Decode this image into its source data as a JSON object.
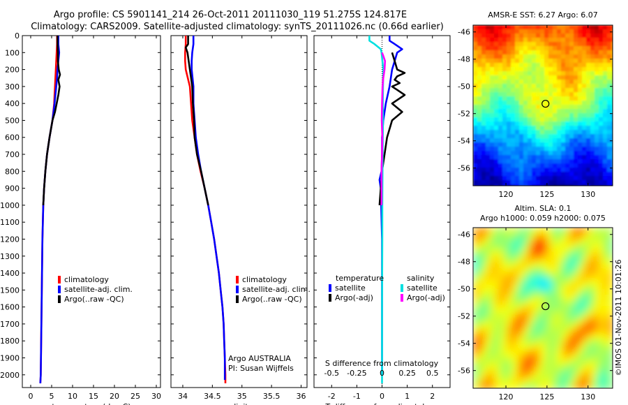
{
  "header": {
    "title_line1": "Argo profile: CS 5901141_214 26-Oct-2011 20111030_119 51.275S 124.817E",
    "title_line2": "Climatology: CARS2009. Satellite-adjusted climatology: synTS_20111026.nc (0.66d earlier)"
  },
  "watermark": "©IMOS 01-Nov-2011 10:01:26",
  "colors": {
    "climatology": "#ff0000",
    "satellite": "#0000ff",
    "argo": "#000000",
    "sat_salinity": "#00e0e0",
    "argo_salinity": "#ff00ff"
  },
  "chart_data": [
    {
      "type": "line",
      "id": "temperature",
      "xlabel": "temperature (deg C)",
      "xlim": [
        -2,
        31
      ],
      "ylim": [
        0,
        2075
      ],
      "xticks": [
        "0",
        "5",
        "10",
        "15",
        "20",
        "25",
        "30"
      ],
      "yticks": [
        "0",
        "100",
        "200",
        "300",
        "400",
        "500",
        "600",
        "700",
        "800",
        "900",
        "1000",
        "1100",
        "1200",
        "1300",
        "1400",
        "1500",
        "1600",
        "1700",
        "1800",
        "1900",
        "2000"
      ],
      "legend": {
        "placement": "lower-middle",
        "entries": [
          "climatology",
          "satellite-adj. clim.",
          "Argo(..raw -QC)"
        ]
      },
      "series": [
        {
          "name": "climatology",
          "color": "#ff0000",
          "depth": [
            0,
            50,
            100,
            150,
            200,
            250,
            300,
            350,
            400,
            500,
            600,
            700,
            800,
            900,
            1000,
            1200,
            1400,
            1600,
            1800,
            2000,
            2050
          ],
          "values": [
            6.3,
            6.3,
            6.2,
            6.1,
            6.0,
            5.9,
            5.8,
            5.7,
            5.6,
            5.2,
            4.5,
            3.9,
            3.5,
            3.2,
            3.0,
            2.8,
            2.7,
            2.6,
            2.5,
            2.4,
            2.3
          ]
        },
        {
          "name": "satellite-adj. clim.",
          "color": "#0000ff",
          "depth": [
            0,
            50,
            100,
            150,
            200,
            250,
            300,
            350,
            400,
            500,
            600,
            700,
            800,
            900,
            1000,
            1200,
            1400,
            1600,
            1800,
            2000,
            2050
          ],
          "values": [
            6.6,
            6.6,
            6.8,
            6.6,
            6.4,
            6.3,
            6.1,
            5.9,
            5.7,
            5.2,
            4.5,
            3.9,
            3.5,
            3.2,
            3.0,
            2.8,
            2.7,
            2.6,
            2.5,
            2.4,
            2.3
          ]
        },
        {
          "name": "Argo(..raw -QC)",
          "color": "#000000",
          "depth": [
            0,
            50,
            100,
            150,
            200,
            230,
            260,
            300,
            350,
            400,
            450,
            500,
            600,
            700,
            800,
            900,
            1000
          ],
          "values": [
            6.4,
            6.4,
            6.5,
            6.5,
            6.7,
            7.0,
            6.6,
            6.9,
            6.6,
            6.2,
            5.8,
            5.2,
            4.5,
            3.9,
            3.5,
            3.2,
            3.0
          ]
        }
      ]
    },
    {
      "type": "line",
      "id": "salinity",
      "xlabel": "salinity",
      "xlim": [
        33.8,
        36.1
      ],
      "ylim": [
        0,
        2075
      ],
      "xticks": [
        "34",
        "34.5",
        "35",
        "35.5",
        "36"
      ],
      "legend": {
        "placement": "lower-middle",
        "entries": [
          "climatology",
          "satellite-adj. clim.",
          "Argo(..raw -QC)"
        ]
      },
      "annotation": {
        "line1": "Argo AUSTRALIA",
        "line2": "PI: Susan Wijffels"
      },
      "series": [
        {
          "name": "climatology",
          "color": "#ff0000",
          "depth": [
            0,
            50,
            100,
            150,
            200,
            300,
            400,
            500,
            600,
            700,
            800,
            900,
            1000,
            1100,
            1200,
            1300,
            1400,
            1500,
            1600,
            1700,
            1800,
            1900,
            2000,
            2050
          ],
          "values": [
            34.05,
            34.05,
            34.04,
            34.04,
            34.05,
            34.12,
            34.14,
            34.16,
            34.2,
            34.24,
            34.3,
            34.37,
            34.43,
            34.48,
            34.53,
            34.57,
            34.61,
            34.64,
            34.67,
            34.69,
            34.7,
            34.71,
            34.72,
            34.72
          ]
        },
        {
          "name": "satellite-adj. clim.",
          "color": "#0000ff",
          "depth": [
            0,
            50,
            100,
            150,
            200,
            300,
            400,
            500,
            600,
            700,
            800,
            900,
            1000,
            1100,
            1200,
            1300,
            1400,
            1500,
            1600,
            1700,
            1800,
            1900,
            2000,
            2030
          ],
          "values": [
            34.18,
            34.18,
            34.16,
            34.15,
            34.15,
            34.18,
            34.18,
            34.2,
            34.22,
            34.26,
            34.31,
            34.37,
            34.43,
            34.48,
            34.53,
            34.57,
            34.61,
            34.64,
            34.67,
            34.69,
            34.7,
            34.71,
            34.71,
            34.71
          ]
        },
        {
          "name": "Argo(..raw -QC)",
          "color": "#000000",
          "depth": [
            0,
            50,
            70,
            100,
            150,
            200,
            250,
            300,
            400,
            500,
            600,
            700,
            800,
            900,
            1000
          ],
          "values": [
            34.09,
            34.09,
            34.05,
            34.08,
            34.1,
            34.12,
            34.14,
            34.16,
            34.17,
            34.19,
            34.2,
            34.24,
            34.31,
            34.37,
            34.43
          ]
        }
      ]
    },
    {
      "type": "line",
      "id": "difference",
      "xlabel": "T difference from climatology",
      "top_xlabel": "S difference from climatology",
      "xlim": [
        -2.7,
        2.7
      ],
      "ylim": [
        0,
        2075
      ],
      "xticks": [
        "-2",
        "-1",
        "0",
        "1",
        "2"
      ],
      "top_xticks": [
        "-0.5",
        "-0.25",
        "0",
        "0.25",
        "0.5"
      ],
      "legend": {
        "placement": "lower-middle",
        "temp_title": "temperature",
        "sal_title": "salinity",
        "entries": [
          "satellite",
          "Argo(-adj)",
          "satellite",
          "Argo(-adj)"
        ]
      },
      "series": [
        {
          "name": "satellite",
          "group": "temperature",
          "color": "#0000ff",
          "depth": [
            0,
            30,
            50,
            80,
            100,
            150,
            200,
            300,
            400,
            500,
            600,
            700,
            800,
            850,
            900,
            1200,
            1500,
            2000
          ],
          "values": [
            0.3,
            0.3,
            0.5,
            0.8,
            0.6,
            0.5,
            0.4,
            0.3,
            0.15,
            0.05,
            0.0,
            0.0,
            -0.02,
            -0.1,
            -0.05,
            0.0,
            0.0,
            0.0
          ]
        },
        {
          "name": "Argo(-adj)",
          "group": "temperature",
          "color": "#000000",
          "depth": [
            100,
            150,
            200,
            220,
            240,
            260,
            280,
            300,
            320,
            350,
            400,
            450,
            500,
            550,
            600,
            700,
            800,
            900,
            1000
          ],
          "values": [
            0.4,
            0.5,
            0.6,
            0.9,
            0.6,
            0.5,
            0.7,
            0.4,
            0.6,
            0.9,
            0.4,
            0.8,
            0.4,
            0.3,
            0.2,
            0.1,
            0.0,
            -0.05,
            -0.1
          ]
        },
        {
          "name": "satellite",
          "group": "salinity",
          "color": "#00e0e0",
          "depth": [
            0,
            30,
            50,
            80,
            100,
            200,
            300,
            400,
            500,
            600,
            800,
            1000,
            1200,
            1400,
            1600,
            1800,
            2000,
            2050
          ],
          "values": [
            -0.5,
            -0.5,
            -0.3,
            -0.05,
            -0.02,
            0.05,
            0.04,
            0.03,
            0.04,
            0.03,
            0.02,
            0.01,
            0.01,
            0.005,
            0.0,
            0.0,
            0.0,
            0.0
          ]
        },
        {
          "name": "Argo(-adj)",
          "group": "salinity",
          "color": "#ff00ff",
          "depth": [
            100,
            120,
            150,
            200,
            250,
            300,
            400,
            500,
            600,
            700,
            800,
            900,
            1000
          ],
          "values": [
            0.0,
            0.05,
            0.12,
            0.1,
            0.05,
            0.02,
            0.0,
            -0.01,
            0.01,
            0.0,
            -0.02,
            -0.02,
            -0.02
          ]
        }
      ]
    },
    {
      "type": "heatmap",
      "id": "sst_map",
      "title": "AMSR-E SST: 6.27 Argo: 6.07",
      "xlim": [
        116,
        133
      ],
      "ylim": [
        -57.3,
        -45.5
      ],
      "xticks": [
        "120",
        "125",
        "130"
      ],
      "yticks": [
        "-46",
        "-48",
        "-50",
        "-52",
        "-54",
        "-56"
      ],
      "marker": {
        "lon": 124.817,
        "lat": -51.275
      }
    },
    {
      "type": "heatmap",
      "id": "sla_map",
      "title_line1": "Altim. SLA: 0.1",
      "title_line2": "Argo h1000: 0.059 h2000: 0.075",
      "xlim": [
        116,
        133
      ],
      "ylim": [
        -57.3,
        -45.5
      ],
      "xticks": [
        "120",
        "125",
        "130"
      ],
      "yticks": [
        "-46",
        "-48",
        "-50",
        "-52",
        "-54",
        "-56"
      ],
      "marker": {
        "lon": 124.817,
        "lat": -51.275
      }
    }
  ]
}
